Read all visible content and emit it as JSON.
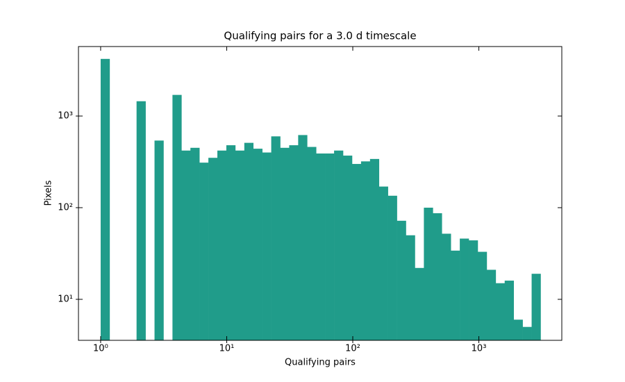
{
  "chart_data": {
    "type": "histogram",
    "title": "Qualifying pairs for a 3.0 d timescale",
    "x_label": "Qualifying pairs",
    "y_label": "Pixels",
    "color": "#209c8a",
    "x_log": true,
    "y_log": true,
    "bins": [
      1,
      1.178,
      1.388,
      1.636,
      1.927,
      2.271,
      2.675,
      3.152,
      3.713,
      4.375,
      5.154,
      6.073,
      7.155,
      8.43,
      9.93,
      11.7,
      13.79,
      16.24,
      19.14,
      22.55,
      26.57,
      31.3,
      36.88,
      43.45,
      51.2,
      60.32,
      71.07,
      83.73,
      98.7,
      116.3,
      137,
      161.4,
      190.1,
      224,
      263.9,
      311,
      366.4,
      431.7,
      508.6,
      599.3,
      706.1,
      831.8,
      980,
      1155,
      1361,
      1603,
      1889,
      2225,
      2622,
      3089
    ],
    "counts": [
      4200,
      0,
      0,
      0,
      1450,
      0,
      540,
      0,
      1700,
      420,
      450,
      310,
      350,
      420,
      480,
      420,
      510,
      440,
      400,
      600,
      450,
      480,
      620,
      460,
      390,
      390,
      420,
      370,
      300,
      320,
      340,
      170,
      135,
      72,
      50,
      22,
      100,
      87,
      52,
      34,
      46,
      44,
      33,
      21,
      15,
      16,
      6,
      5,
      19
    ],
    "xlim": [
      0.667,
      4550
    ],
    "ylim": [
      3.57,
      5730
    ],
    "xticks": [
      {
        "value": 1,
        "label": "10⁰"
      },
      {
        "value": 10,
        "label": "10¹"
      },
      {
        "value": 100,
        "label": "10²"
      },
      {
        "value": 1000,
        "label": "10³"
      }
    ],
    "yticks": [
      {
        "value": 10,
        "label": "10¹"
      },
      {
        "value": 100,
        "label": "10²"
      },
      {
        "value": 1000,
        "label": "10³"
      }
    ]
  }
}
